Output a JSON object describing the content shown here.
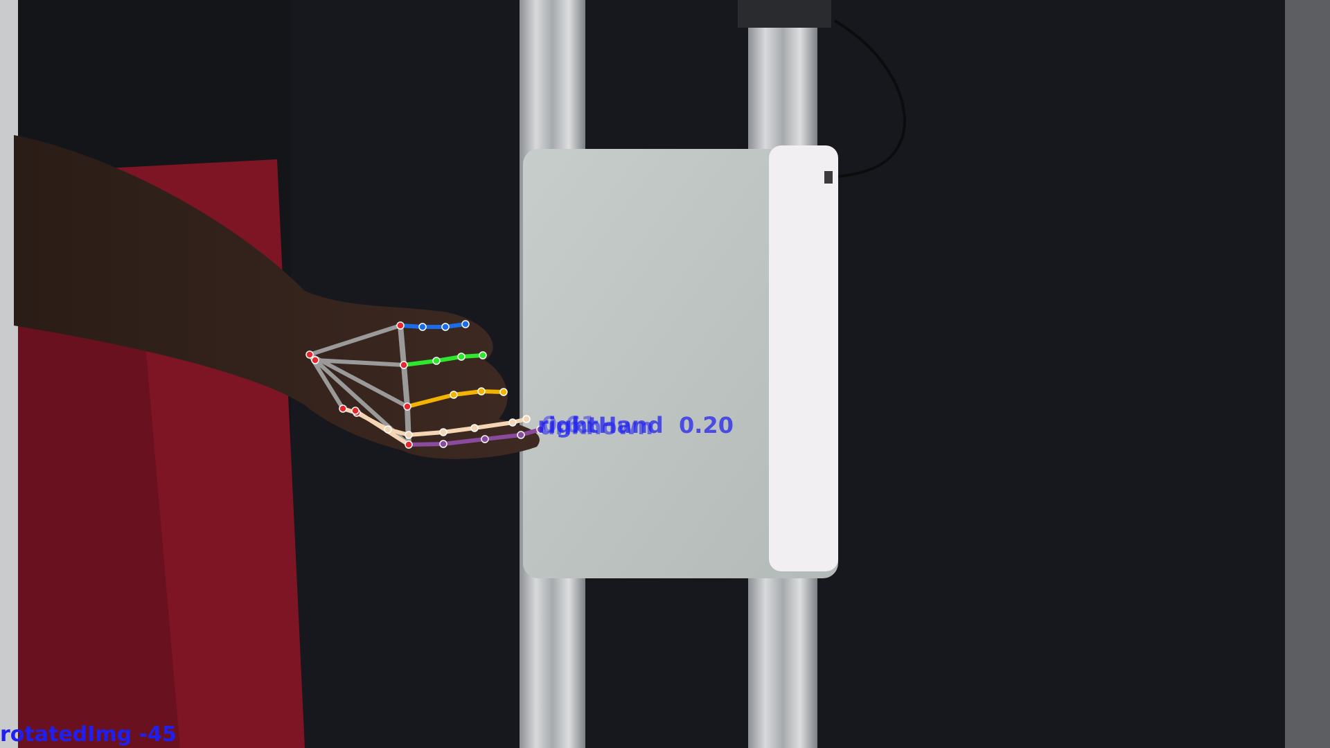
{
  "overlay": {
    "corner_label": "rotatedImg -45",
    "hand_labels": [
      "rightHand",
      "unknown",
      "0.61",
      "0.20"
    ]
  },
  "colors": {
    "label": "#1f1ff0",
    "thumb": "#f4d6b4",
    "index": "#1c6ce8",
    "middle": "#2ee82e",
    "ring": "#f2b400",
    "pinky": "#8a4a9e",
    "palm": "#9a9a9a",
    "joint": "#e8262b"
  },
  "icons": [
    "hand-landmark-overlay",
    "tablet-device",
    "aluminum-rail"
  ]
}
